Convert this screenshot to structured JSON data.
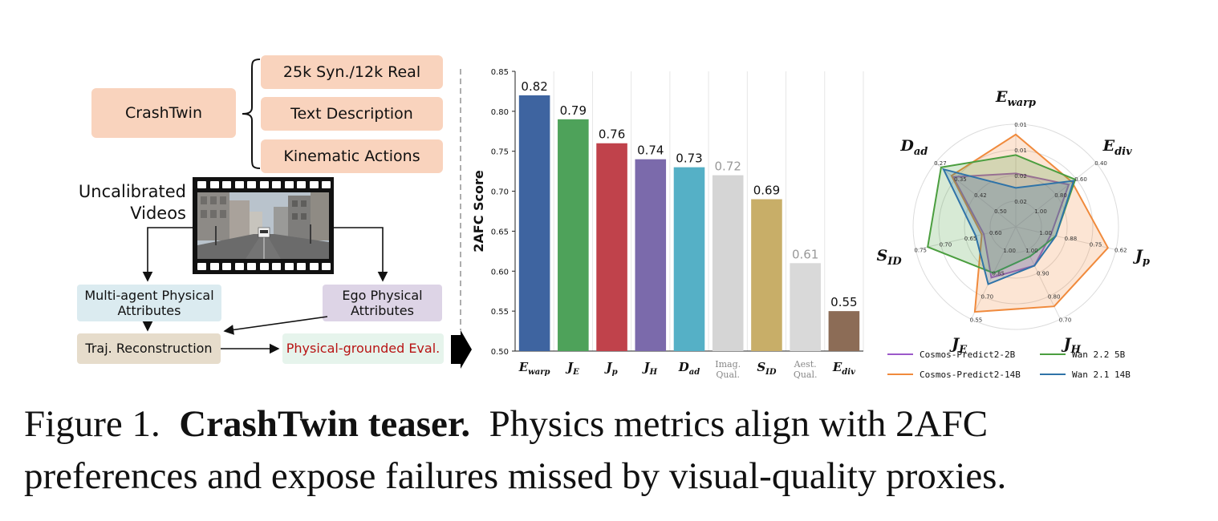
{
  "left_panel": {
    "crashtwin": "CrashTwin",
    "items": [
      "25k Syn./12k Real",
      "Text Description",
      "Kinematic Actions"
    ],
    "uncalibrated": [
      "Uncalibrated",
      "Videos"
    ],
    "multi_agent": [
      "Multi-agent Physical",
      "Attributes"
    ],
    "ego": [
      "Ego Physical",
      "Attributes"
    ],
    "traj": "Traj. Reconstruction",
    "eval": "Physical-grounded Eval.",
    "colors": {
      "peach": "#f9d3bd",
      "blue": "#dbebf0",
      "purple": "#ddd4e6",
      "tan": "#e6dccb",
      "mint": "#e6f4ec",
      "eval_text": "#b81414"
    }
  },
  "chart_data": [
    {
      "type": "bar",
      "ylabel": "2AFC Score",
      "ylim": [
        0.5,
        0.85
      ],
      "yticks": [
        "0.50",
        "0.55",
        "0.60",
        "0.65",
        "0.70",
        "0.75",
        "0.80",
        "0.85"
      ],
      "categories": [
        {
          "base": "E",
          "sub": "warp",
          "italic": true
        },
        {
          "base": "J",
          "sub": "E",
          "italic": true
        },
        {
          "base": "J",
          "sub": "p",
          "italic": true
        },
        {
          "base": "J",
          "sub": "H",
          "italic": true
        },
        {
          "base": "D",
          "sub": "ad",
          "italic": true
        },
        {
          "base": "Imag.\nQual.",
          "sub": "",
          "italic": false
        },
        {
          "base": "S",
          "sub": "ID",
          "italic": true
        },
        {
          "base": "Aest.\nQual.",
          "sub": "",
          "italic": false
        },
        {
          "base": "E",
          "sub": "div",
          "italic": true
        }
      ],
      "values": [
        0.82,
        0.79,
        0.76,
        0.74,
        0.73,
        0.72,
        0.69,
        0.61,
        0.55
      ],
      "labels": [
        "0.82",
        "0.79",
        "0.76",
        "0.74",
        "0.73",
        "0.72",
        "0.69",
        "0.61",
        "0.55"
      ],
      "colors": [
        "#3e64a0",
        "#4ea25a",
        "#c0424b",
        "#7b6aab",
        "#55b0c6",
        "#d5d5d5",
        "#c8ae68",
        "#d9d9d9",
        "#8c6c56"
      ],
      "label_colors": [
        "#111111",
        "#111111",
        "#111111",
        "#111111",
        "#111111",
        "#999999",
        "#111111",
        "#999999",
        "#111111"
      ],
      "grid": "vertical"
    },
    {
      "type": "radar",
      "axes": [
        {
          "base": "E",
          "sub": "warp",
          "ticks": [
            "0.01",
            "0.01",
            "0.02",
            "0.02"
          ]
        },
        {
          "base": "E",
          "sub": "div",
          "ticks": [
            "0.40",
            "0.60",
            "0.80",
            "1.00"
          ]
        },
        {
          "base": "J",
          "sub": "p",
          "ticks": [
            "0.62",
            "0.75",
            "0.88",
            "1.00"
          ]
        },
        {
          "base": "J",
          "sub": "H",
          "ticks": [
            "0.70",
            "0.80",
            "0.90",
            "1.00"
          ]
        },
        {
          "base": "J",
          "sub": "E",
          "ticks": [
            "0.55",
            "0.70",
            "0.85",
            "1.00"
          ]
        },
        {
          "base": "S",
          "sub": "ID",
          "ticks": [
            "0.75",
            "0.70",
            "0.65",
            "0.60"
          ]
        },
        {
          "base": "D",
          "sub": "ad",
          "ticks": [
            "0.27",
            "0.35",
            "0.42",
            "0.50"
          ]
        }
      ],
      "series": [
        {
          "name": "Cosmos-Predict2-2B",
          "color": "#9b59c9",
          "values": [
            0.52,
            0.66,
            0.35,
            0.42,
            0.55,
            0.32,
            0.78
          ]
        },
        {
          "name": "Cosmos-Predict2-14B",
          "color": "#f08a3c",
          "values": [
            0.9,
            0.7,
            0.92,
            0.86,
            0.92,
            0.34,
            0.8
          ]
        },
        {
          "name": "Wan 2.2 5B",
          "color": "#4b9e3f",
          "values": [
            0.7,
            0.74,
            0.4,
            0.32,
            0.5,
            0.88,
            0.93
          ]
        },
        {
          "name": "Wan 2.1 14B",
          "color": "#2f73a8",
          "values": [
            0.38,
            0.72,
            0.4,
            0.42,
            0.62,
            0.4,
            0.9
          ]
        }
      ],
      "legend": "bottom"
    }
  ],
  "caption": {
    "prefix": "Figure 1.",
    "bold": "CrashTwin teaser.",
    "line1_rest": "Physics metrics align with 2AFC",
    "line2": "preferences and expose failures missed by visual-quality proxies."
  }
}
